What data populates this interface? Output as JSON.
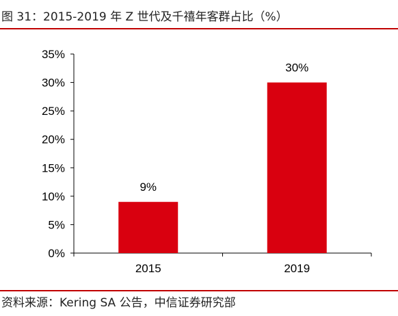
{
  "figure": {
    "title": "图 31：2015-2019 年 Z 世代及千禧年客群占比（%）",
    "source": "资料来源：Kering SA 公告，中信证券研究部"
  },
  "chart_data": {
    "type": "bar",
    "categories": [
      "2015",
      "2019"
    ],
    "values": [
      9,
      30
    ],
    "value_labels": [
      "9%",
      "30%"
    ],
    "y_ticks": [
      "0%",
      "5%",
      "10%",
      "15%",
      "20%",
      "25%",
      "30%",
      "35%"
    ],
    "ylim": [
      0,
      35
    ],
    "ytick_step": 5,
    "grid": false,
    "bar_color": "#d9000f",
    "title": "",
    "xlabel": "",
    "ylabel": ""
  }
}
